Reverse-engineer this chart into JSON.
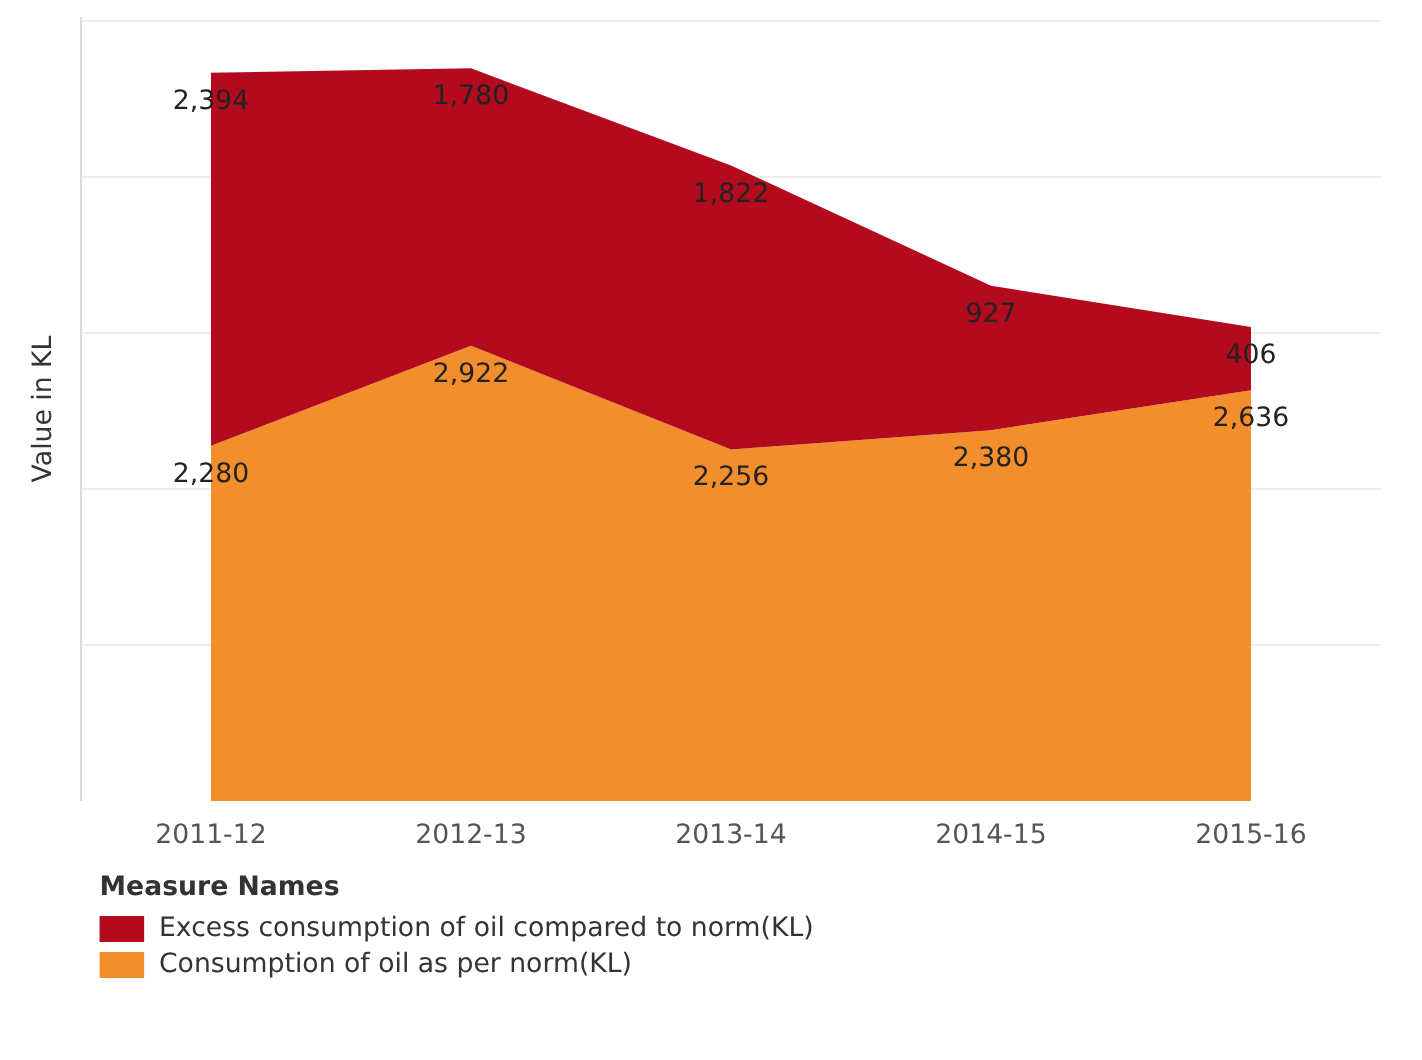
{
  "chart_data": {
    "type": "area",
    "stacked": true,
    "ylabel": "Value in KL",
    "legend_title": "Measure Names",
    "legend": "bottom",
    "grid": "y",
    "tick_labels": "x",
    "categories": [
      "2011-12",
      "2012-13",
      "2013-14",
      "2014-15",
      "2015-16"
    ],
    "series": [
      {
        "name": "Consumption of oil as per norm(KL)",
        "color": "#f28e2b",
        "values": [
          2280,
          2922,
          2256,
          2380,
          2636
        ],
        "value_labels": [
          "2,280",
          "2,922",
          "2,256",
          "2,380",
          "2,636"
        ]
      },
      {
        "name": "Excess consumption of oil compared to norm(KL)",
        "color": "#b30a1e",
        "values": [
          2394,
          1780,
          1822,
          927,
          406
        ],
        "value_labels": [
          "2,394",
          "1,780",
          "1,822",
          "927",
          "406"
        ]
      }
    ]
  }
}
